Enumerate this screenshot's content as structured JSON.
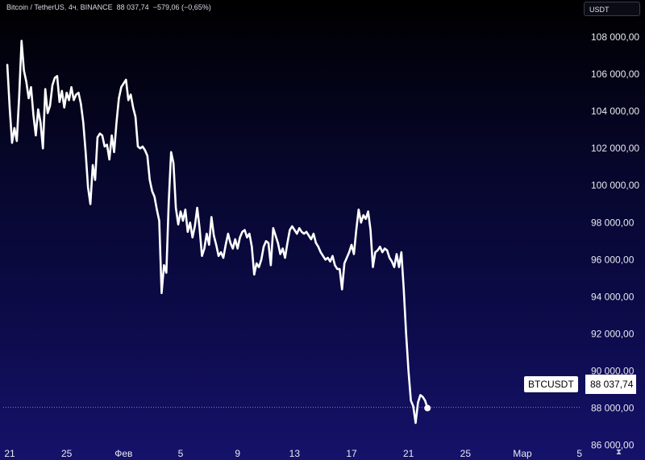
{
  "header": {
    "symbol": "Bitcoin / TetherUS",
    "interval": "4ч",
    "exchange": "BINANCE",
    "last": "88 037,74",
    "change": "−579,06 (−0,65%)"
  },
  "currency_button": "USDT",
  "ticker_tag": "BTCUSDT",
  "price_tag": "88 037,74",
  "tv_logo": "⧗",
  "colors": {
    "line": "#ffffff",
    "last_price_line": "#8a8aa8",
    "grid": "#1a1a3a"
  },
  "chart_data": {
    "type": "line",
    "title": "Bitcoin / TetherUS, 4ч, BINANCE",
    "series": [
      {
        "name": "BTCUSDT",
        "values": [
          106500,
          104200,
          102300,
          103100,
          102400,
          104800,
          107800,
          106200,
          105600,
          104700,
          105300,
          103800,
          102700,
          104100,
          103400,
          102000,
          105200,
          103900,
          104300,
          105400,
          105800,
          105900,
          104500,
          105100,
          104200,
          105000,
          104600,
          105300,
          104600,
          104900,
          105000,
          104400,
          103400,
          101800,
          99900,
          99000,
          101100,
          100300,
          102600,
          102800,
          102700,
          102100,
          102200,
          101400,
          102700,
          101800,
          103400,
          104700,
          105300,
          105500,
          105700,
          104600,
          104900,
          104200,
          103700,
          102100,
          102000,
          102100,
          101900,
          101600,
          100300,
          99700,
          99400,
          98700,
          98100,
          94200,
          95700,
          95300,
          99100,
          101800,
          101200,
          98800,
          97900,
          98600,
          98100,
          98700,
          97500,
          98000,
          97200,
          97800,
          98800,
          97700,
          96200,
          96600,
          97400,
          96800,
          98300,
          97300,
          96800,
          96200,
          96400,
          96100,
          96800,
          97400,
          96900,
          96600,
          97100,
          96600,
          97200,
          97500,
          97600,
          97200,
          97400,
          96700,
          95200,
          95800,
          95600,
          96000,
          96700,
          97000,
          96900,
          95700,
          97700,
          97300,
          96900,
          96300,
          96600,
          96100,
          96900,
          97600,
          97800,
          97600,
          97400,
          97700,
          97500,
          97400,
          97500,
          97300,
          97100,
          97400,
          96900,
          96700,
          96400,
          96200,
          96000,
          96100,
          95900,
          96200,
          95700,
          95500,
          95500,
          94400,
          95800,
          96100,
          96400,
          96800,
          96300,
          97600,
          98700,
          98000,
          98400,
          98200,
          98600,
          97600,
          95600,
          96400,
          96500,
          96700,
          96400,
          96600,
          96500,
          96100,
          95900,
          95600,
          96300,
          95600,
          96400,
          94400,
          92000,
          90000,
          88400,
          88100,
          87200,
          88300,
          88700,
          88600,
          88400,
          88000
        ]
      }
    ],
    "current_price": 88037.74,
    "ylim": [
      85200,
      110000
    ],
    "y_ticks": [
      86000,
      88000,
      90000,
      92000,
      94000,
      96000,
      98000,
      100000,
      102000,
      104000,
      106000,
      108000
    ],
    "y_tick_labels": [
      "86 000,00",
      "88 000,00",
      "90 000,00",
      "92 000,00",
      "94 000,00",
      "96 000,00",
      "98 000,00",
      "100 000,00",
      "102 000,00",
      "104 000,00",
      "106 000,00",
      "108 000,00"
    ],
    "x_ticks": [
      {
        "label": "21",
        "index": 1
      },
      {
        "label": "25",
        "index": 25
      },
      {
        "label": "Фев",
        "index": 49
      },
      {
        "label": "5",
        "index": 73
      },
      {
        "label": "9",
        "index": 97
      },
      {
        "label": "13",
        "index": 121
      },
      {
        "label": "17",
        "index": 145
      },
      {
        "label": "21",
        "index": 169
      },
      {
        "label": "25",
        "index": 193
      },
      {
        "label": "Мар",
        "index": 217
      },
      {
        "label": "5",
        "index": 241
      }
    ],
    "grid": false,
    "xlabel": "",
    "ylabel": "USDT"
  }
}
